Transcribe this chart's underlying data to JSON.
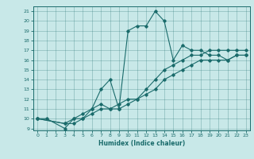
{
  "xlabel": "Humidex (Indice chaleur)",
  "ylabel": "",
  "bg_color": "#c8e8e8",
  "line_color": "#1a6b6b",
  "xlim": [
    -0.5,
    23.5
  ],
  "ylim": [
    8.8,
    21.5
  ],
  "yticks": [
    9,
    10,
    11,
    12,
    13,
    14,
    15,
    16,
    17,
    18,
    19,
    20,
    21
  ],
  "xticks": [
    0,
    1,
    2,
    3,
    4,
    5,
    6,
    7,
    8,
    9,
    10,
    11,
    12,
    13,
    14,
    15,
    16,
    17,
    18,
    19,
    20,
    21,
    22,
    23
  ],
  "series": [
    {
      "x": [
        0,
        1,
        3,
        4,
        5,
        6,
        7,
        8,
        9,
        10,
        11,
        12,
        13,
        14,
        15,
        16,
        17,
        18,
        19,
        20,
        21,
        22,
        23
      ],
      "y": [
        10,
        10,
        9,
        10,
        10,
        11,
        13,
        14,
        11,
        19,
        19.5,
        19.5,
        21,
        20,
        16,
        17.5,
        17,
        17,
        16.5,
        16.5,
        16,
        16.5,
        16.5
      ]
    },
    {
      "x": [
        0,
        3,
        4,
        5,
        6,
        7,
        8,
        9,
        10,
        11,
        12,
        13,
        14,
        15,
        16,
        17,
        18,
        19,
        20,
        21,
        22,
        23
      ],
      "y": [
        10,
        9.5,
        10,
        10.5,
        11,
        11.5,
        11,
        11.5,
        12,
        12,
        13,
        14,
        15,
        15.5,
        16,
        16.5,
        16.5,
        17,
        17,
        17,
        17,
        17
      ]
    },
    {
      "x": [
        0,
        3,
        4,
        5,
        6,
        7,
        8,
        9,
        10,
        11,
        12,
        13,
        14,
        15,
        16,
        17,
        18,
        19,
        20,
        21,
        22,
        23
      ],
      "y": [
        10,
        9.5,
        9.5,
        10,
        10.5,
        11,
        11,
        11,
        11.5,
        12,
        12.5,
        13,
        14,
        14.5,
        15,
        15.5,
        16,
        16,
        16,
        16,
        16.5,
        16.5
      ]
    }
  ]
}
